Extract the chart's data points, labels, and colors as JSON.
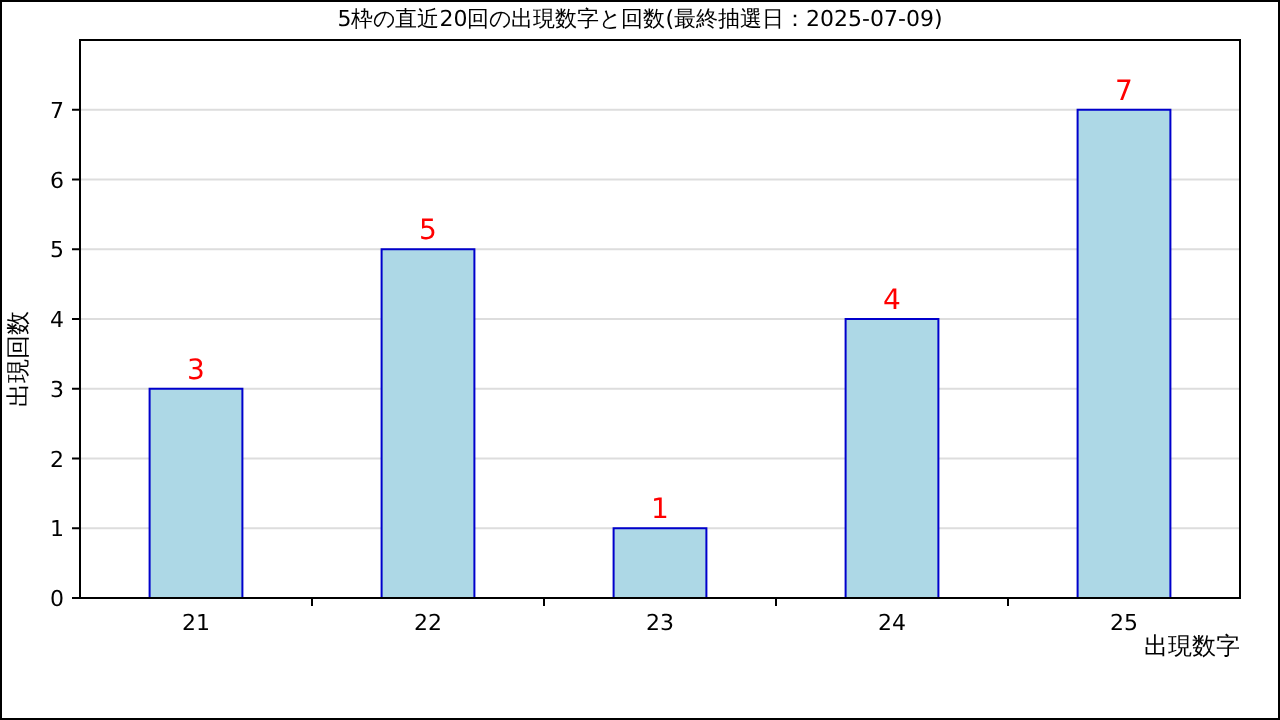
{
  "chart_data": {
    "type": "bar",
    "title": "5枠の直近20回の出現数字と回数(最終抽選日：2025-07-09)",
    "xlabel": "出現数字",
    "ylabel": "出現回数",
    "categories": [
      "21",
      "22",
      "23",
      "24",
      "25"
    ],
    "values": [
      3,
      5,
      1,
      4,
      7
    ],
    "color": "#add8e6",
    "ylim": [
      0,
      8
    ],
    "yticks": [
      0,
      1,
      2,
      3,
      4,
      5,
      6,
      7
    ],
    "grid": "y",
    "data_labels": true
  }
}
